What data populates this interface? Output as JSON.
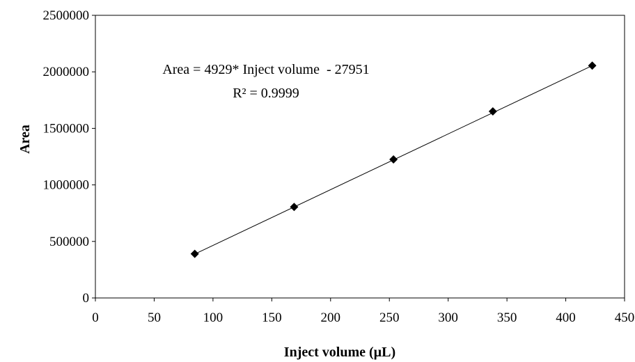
{
  "chart_data": {
    "type": "scatter",
    "xlabel": "Inject volume (µL)",
    "ylabel": "Area",
    "xlim": [
      0,
      450
    ],
    "ylim": [
      0,
      2500000
    ],
    "x_ticks": [
      0,
      50,
      100,
      150,
      200,
      250,
      300,
      350,
      400,
      450
    ],
    "y_ticks": [
      0,
      500000,
      1000000,
      1500000,
      2000000,
      2500000
    ],
    "x_tick_labels": [
      "0",
      "50",
      "100",
      "150",
      "200",
      "250",
      "300",
      "350",
      "400",
      "450"
    ],
    "y_tick_labels": [
      "0",
      "500000",
      "1000000",
      "1500000",
      "2000000",
      "2500000"
    ],
    "grid": false,
    "marker": "diamond",
    "series": [
      {
        "x": [
          84.5,
          169,
          253.5,
          338,
          422.5
        ],
        "y": [
          390000,
          805000,
          1225000,
          1650000,
          2055000
        ]
      }
    ],
    "trendline": {
      "slope": 4929,
      "intercept": -27951,
      "x_range": [
        84.5,
        422.5
      ]
    },
    "annotations": {
      "equation": "Area = 4929* Inject volume  - 27951",
      "r_squared": "R² = 0.9999"
    }
  }
}
